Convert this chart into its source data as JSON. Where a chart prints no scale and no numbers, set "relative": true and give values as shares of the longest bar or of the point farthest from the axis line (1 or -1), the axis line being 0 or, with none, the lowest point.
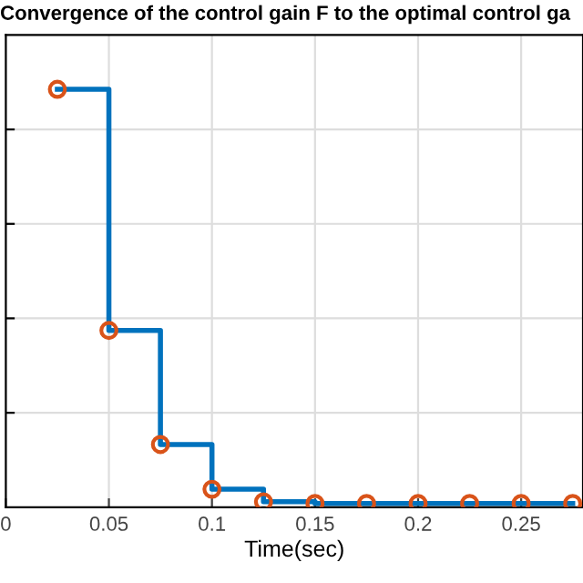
{
  "chart_data": {
    "type": "step",
    "title": "Convergence of the control gain F to the optimal control ga",
    "xlabel": "Time(sec)",
    "relative": true,
    "x": [
      0.025,
      0.05,
      0.075,
      0.1,
      0.125,
      0.15,
      0.175,
      0.2,
      0.225,
      0.25,
      0.275
    ],
    "series": [
      {
        "color": "#0072bd",
        "marker": "none",
        "values": [
          1,
          0.423,
          0.15,
          0.043,
          0.013,
          0.009,
          0.009,
          0.009,
          0.009,
          0.009,
          0.009
        ]
      },
      {
        "type": "scatter",
        "color": "#d95319",
        "marker": "circle",
        "values": [
          1,
          0.423,
          0.15,
          0.043,
          0.013,
          0.009,
          0.009,
          0.009,
          0.009,
          0.009,
          0.009
        ]
      }
    ],
    "xlim": [
      0,
      0.28
    ],
    "xticks": [
      0,
      0.05,
      0.1,
      0.15,
      0.2,
      0.25
    ],
    "grid": true,
    "tick_labels": "x"
  }
}
